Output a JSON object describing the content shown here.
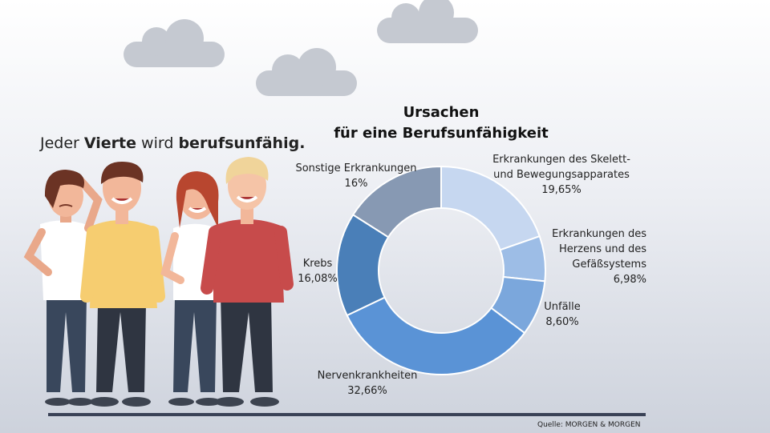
{
  "tagline": {
    "part1": "Jeder ",
    "bold1": "Vierte",
    "part2": " wird ",
    "bold2": "berufsunfähig."
  },
  "title": {
    "line1": "Ursachen",
    "line2": "für eine Berufsunfähigkeit"
  },
  "source": "Quelle: MORGEN & MORGEN",
  "colors": {
    "floor": "#3a4256",
    "cloud": "#c5c9d1"
  },
  "chart_data": {
    "type": "pie",
    "donut": true,
    "title": "Ursachen für eine Berufsunfähigkeit",
    "slices": [
      {
        "label": "Erkrankungen des Skelett- und Bewegungsapparates",
        "label_lines": [
          "Erkrankungen des Skelett-",
          "und Bewegungsapparates"
        ],
        "value_text": "19,65%",
        "value": 19.65,
        "color": "#c6d7f0"
      },
      {
        "label": "Erkrankungen des Herzens und des Gefäßsystems",
        "label_lines": [
          "Erkrankungen des",
          "Herzens und des",
          "Gefäßsystems"
        ],
        "value_text": "6,98%",
        "value": 6.98,
        "color": "#9dbde6"
      },
      {
        "label": "Unfälle",
        "label_lines": [
          "Unfälle"
        ],
        "value_text": "8,60%",
        "value": 8.6,
        "color": "#7ba7dc"
      },
      {
        "label": "Nervenkrankheiten",
        "label_lines": [
          "Nervenkrankheiten"
        ],
        "value_text": "32,66%",
        "value": 32.66,
        "color": "#5a93d6"
      },
      {
        "label": "Krebs",
        "label_lines": [
          "Krebs"
        ],
        "value_text": "16,08%",
        "value": 16.08,
        "color": "#4a7fb8"
      },
      {
        "label": "Sonstige Erkrankungen",
        "label_lines": [
          "Sonstige Erkrankungen"
        ],
        "value_text": "16%",
        "value": 16,
        "color": "#8799b3"
      }
    ]
  }
}
